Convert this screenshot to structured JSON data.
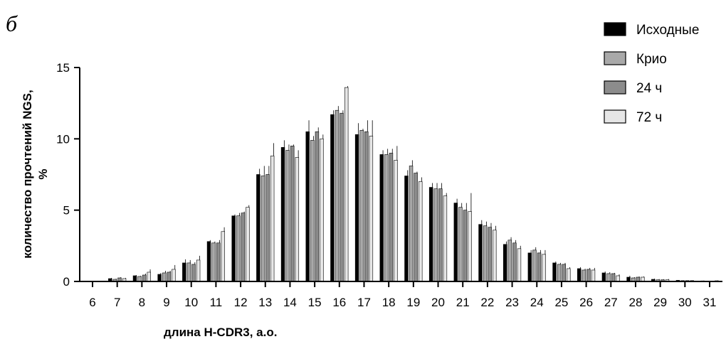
{
  "panel_letter": "б",
  "chart_data": {
    "type": "bar",
    "xlabel": "длина H-CDR3, а.о.",
    "ylabel_line1": "количество прочтений NGS,",
    "ylabel_line2": "%",
    "ylim": [
      0,
      15
    ],
    "yticks": [
      0,
      5,
      10,
      15
    ],
    "categories": [
      "6",
      "7",
      "8",
      "9",
      "10",
      "11",
      "12",
      "13",
      "14",
      "15",
      "16",
      "17",
      "18",
      "19",
      "20",
      "21",
      "22",
      "23",
      "24",
      "25",
      "26",
      "27",
      "28",
      "29",
      "30",
      "31"
    ],
    "series": [
      {
        "name": "Исходные",
        "color": "#000000",
        "values": [
          0.0,
          0.2,
          0.4,
          0.5,
          1.3,
          2.8,
          4.6,
          7.5,
          9.4,
          10.5,
          11.7,
          10.3,
          8.9,
          7.4,
          6.6,
          5.5,
          4.0,
          2.6,
          2.0,
          1.3,
          0.9,
          0.6,
          0.3,
          0.15,
          0.08,
          0.04
        ],
        "errors": [
          0,
          0.05,
          0.05,
          0.1,
          0.25,
          0.1,
          0.1,
          0.4,
          0.5,
          0.8,
          0.3,
          0.8,
          0.3,
          0.4,
          0.3,
          0.3,
          0.3,
          0.2,
          0.2,
          0.1,
          0.1,
          0.1,
          0.1,
          0.05,
          0.02,
          0.02
        ]
      },
      {
        "name": "Крио",
        "color": "#a9a9a9",
        "values": [
          0.0,
          0.15,
          0.35,
          0.6,
          1.3,
          2.7,
          4.6,
          7.4,
          9.2,
          9.9,
          12.0,
          10.6,
          8.9,
          8.1,
          6.5,
          5.2,
          3.9,
          2.9,
          2.2,
          1.2,
          0.8,
          0.55,
          0.25,
          0.12,
          0.06,
          0.03
        ],
        "errors": [
          0,
          0.05,
          0.05,
          0.15,
          0.2,
          0.1,
          0.2,
          0.7,
          0.4,
          0.3,
          0.3,
          0.1,
          0.4,
          0.4,
          0.4,
          0.3,
          0.3,
          0.2,
          0.2,
          0.1,
          0.1,
          0.1,
          0.05,
          0.05,
          0.02,
          0.02
        ]
      },
      {
        "name": "24 ч",
        "color": "#8c8c8c",
        "values": [
          0.0,
          0.25,
          0.45,
          0.65,
          1.2,
          2.7,
          4.8,
          7.5,
          9.5,
          10.5,
          11.8,
          10.5,
          9.0,
          7.6,
          6.5,
          5.0,
          3.8,
          2.7,
          2.0,
          1.2,
          0.85,
          0.55,
          0.3,
          0.12,
          0.06,
          0.03
        ],
        "errors": [
          0,
          0.05,
          0.1,
          0.1,
          0.15,
          0.2,
          0.1,
          0.6,
          0.1,
          0.3,
          0.2,
          0.8,
          0.3,
          0.1,
          0.4,
          0.5,
          0.3,
          0.2,
          0.2,
          0.1,
          0.1,
          0.05,
          0.05,
          0.04,
          0.02,
          0.02
        ]
      },
      {
        "name": "72 ч",
        "color": "#e6e6e6",
        "values": [
          0.0,
          0.2,
          0.65,
          0.85,
          1.5,
          3.5,
          5.2,
          8.8,
          8.7,
          10.0,
          13.6,
          10.2,
          8.5,
          7.0,
          6.0,
          4.9,
          3.6,
          2.3,
          1.9,
          0.9,
          0.8,
          0.4,
          0.3,
          0.12,
          0.06,
          0.05
        ],
        "errors": [
          0,
          0.05,
          0.2,
          0.3,
          0.3,
          0.3,
          0.15,
          0.9,
          0.5,
          0.3,
          0.1,
          1.1,
          1.0,
          0.3,
          0.2,
          1.3,
          0.3,
          0.2,
          0.3,
          0.1,
          0.15,
          0.1,
          0.05,
          0.05,
          0.02,
          0.02
        ]
      }
    ],
    "legend_position": "top-right",
    "grid": false
  }
}
